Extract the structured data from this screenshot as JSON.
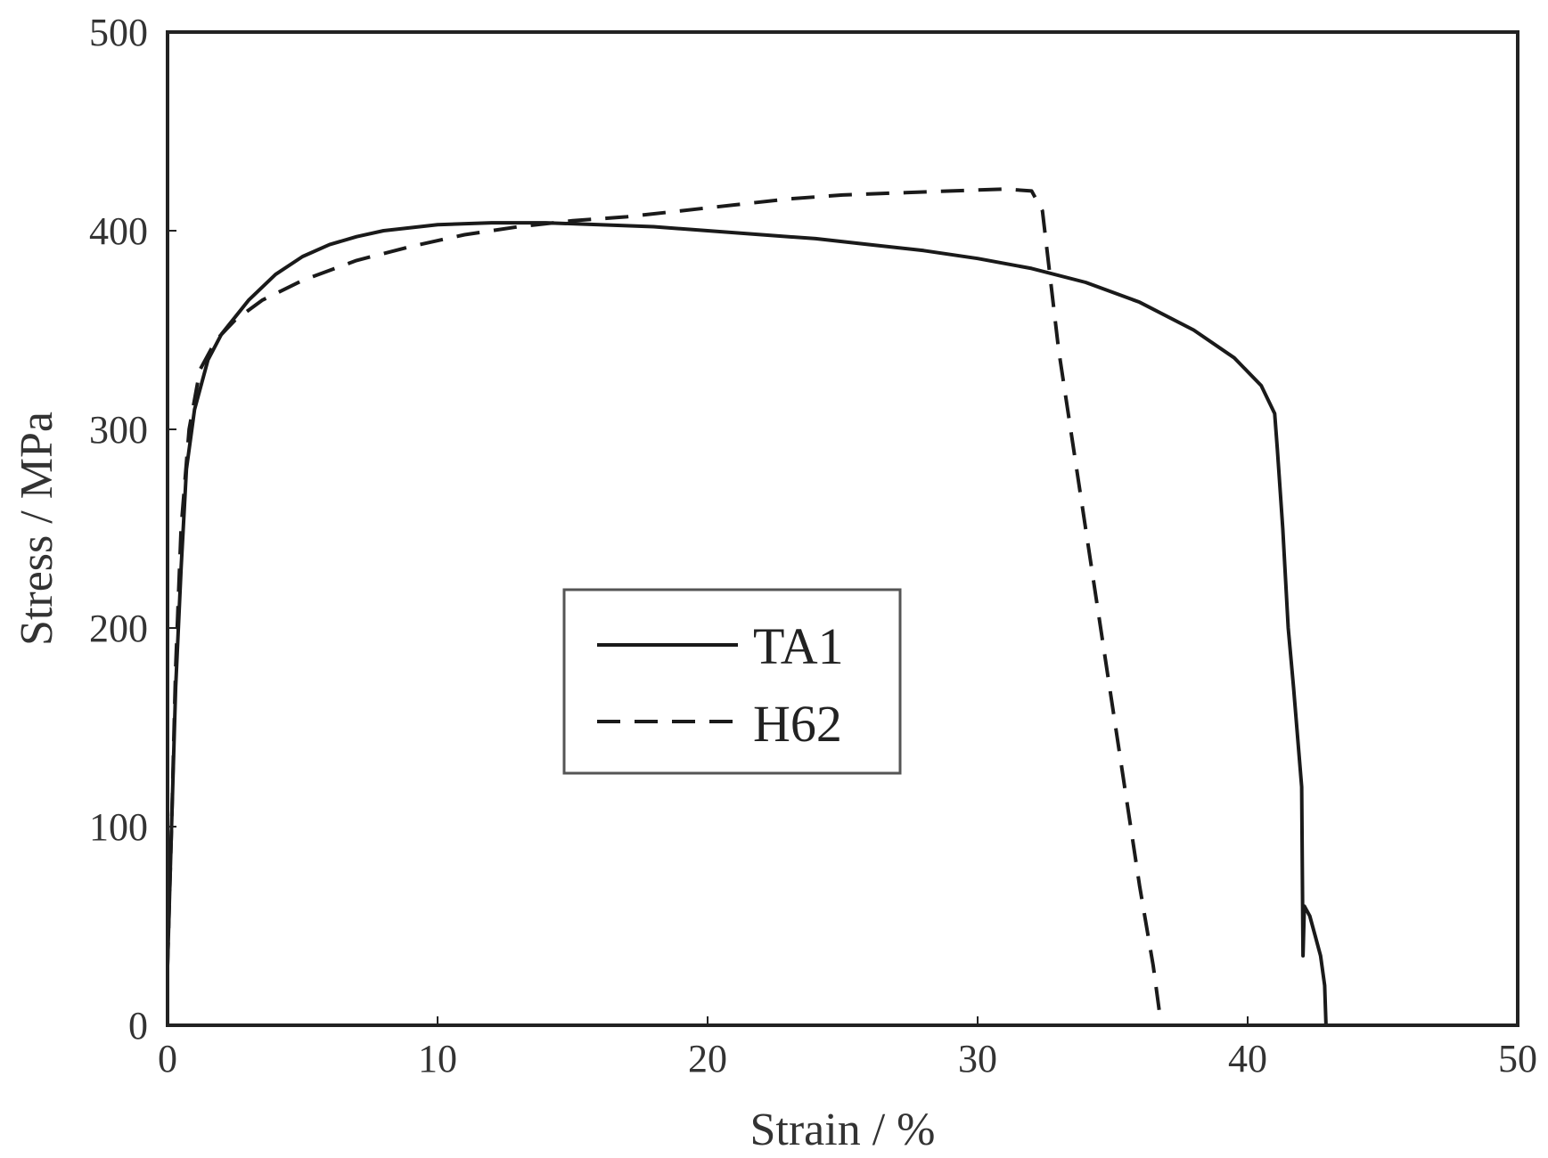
{
  "chart_data": {
    "type": "line",
    "title": "",
    "xlabel": "Strain / %",
    "ylabel": "Stress / MPa",
    "xlim": [
      0,
      50
    ],
    "ylim": [
      0,
      500
    ],
    "xticks": [
      0,
      10,
      20,
      30,
      40,
      50
    ],
    "yticks": [
      0,
      100,
      200,
      300,
      400,
      500
    ],
    "xtick_labels": [
      "0",
      "10",
      "20",
      "30",
      "40",
      "50"
    ],
    "ytick_labels": [
      "0",
      "100",
      "200",
      "300",
      "400",
      "500"
    ],
    "grid": false,
    "legend_position": "center",
    "colors": {
      "lines": "#1a1a1a",
      "frame": "#222222",
      "text": "#333333"
    },
    "series": [
      {
        "name": "TA1",
        "style": "solid",
        "x": [
          0.0,
          0.15,
          0.3,
          0.5,
          0.7,
          1.0,
          1.5,
          2.0,
          3.0,
          4.0,
          5.0,
          6.0,
          7.0,
          8.0,
          10.0,
          12.0,
          14.0,
          16.0,
          18.0,
          20.0,
          22.0,
          24.0,
          26.0,
          28.0,
          30.0,
          32.0,
          34.0,
          36.0,
          38.0,
          39.5,
          40.5,
          41.0,
          41.1,
          41.3,
          41.5,
          41.7,
          42.0,
          42.05,
          42.1,
          42.3,
          42.5,
          42.7,
          42.85,
          42.9
        ],
        "y": [
          30,
          100,
          170,
          230,
          280,
          310,
          335,
          348,
          365,
          378,
          387,
          393,
          397,
          400,
          403,
          404,
          404,
          403,
          402,
          400,
          398,
          396,
          393,
          390,
          386,
          381,
          374,
          364,
          350,
          336,
          322,
          308,
          290,
          250,
          200,
          170,
          120,
          35,
          60,
          55,
          45,
          35,
          20,
          0
        ]
      },
      {
        "name": "H62",
        "style": "dashed",
        "x": [
          0.0,
          0.15,
          0.3,
          0.5,
          0.8,
          1.2,
          1.8,
          2.5,
          3.5,
          5.0,
          7.0,
          9.0,
          11.0,
          13.0,
          15.0,
          17.0,
          19.0,
          21.0,
          23.0,
          25.0,
          27.0,
          29.0,
          31.0,
          32.0,
          32.4,
          33.0,
          34.0,
          35.0,
          36.0,
          36.5,
          36.8
        ],
        "y": [
          30,
          100,
          180,
          250,
          300,
          330,
          345,
          355,
          365,
          375,
          385,
          392,
          398,
          402,
          405,
          407,
          410,
          413,
          416,
          418,
          419,
          420,
          421,
          420,
          410,
          340,
          250,
          160,
          70,
          30,
          0
        ]
      }
    ]
  }
}
